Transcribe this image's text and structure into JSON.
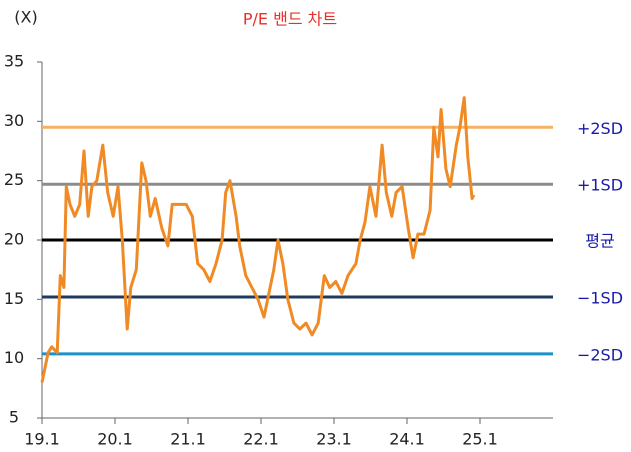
{
  "chart_data": {
    "type": "line",
    "title": "P/E 밴드 차트",
    "y_unit_label": "(X)",
    "x": [
      0,
      1,
      1.6,
      2.5,
      3,
      3.6,
      4,
      4.6,
      5.4,
      6.2,
      6.9,
      7.6,
      8.2,
      9,
      10,
      10.8,
      11.7,
      12.5,
      13.2,
      14,
      14.6,
      15.5,
      16.4,
      17.1,
      17.8,
      18.6,
      19.7,
      20.7,
      21.4,
      22.4,
      23.7,
      24.7,
      25.6,
      26.6,
      27.6,
      28.6,
      29.6,
      30.2,
      30.9,
      31.9,
      32.5,
      33.5,
      34.5,
      35.5,
      36.5,
      37.5,
      38.1,
      38.8,
      39.6,
      40.4,
      41.4,
      42.4,
      43.4,
      44.4,
      45.4,
      46.4,
      47.3,
      48.3,
      49.3,
      50.3,
      51.6,
      52.3,
      53.1,
      53.9,
      54.9,
      55.9,
      56.6,
      57.5,
      58.2,
      59.2,
      60.2,
      61,
      61.8,
      62.8,
      63.8,
      64.4,
      65.1,
      65.6,
      66.4,
      67.1,
      68.1,
      68.7,
      69.4,
      70,
      70.7,
      71
    ],
    "series": [
      {
        "name": "P/E",
        "color": "#f08a24",
        "values": [
          8,
          10.5,
          11,
          10.5,
          17,
          16,
          24.5,
          23,
          22,
          23,
          27.5,
          22,
          24.5,
          25,
          28,
          24,
          22,
          24.5,
          20,
          12.5,
          16,
          17.5,
          26.5,
          25,
          22,
          23.5,
          21,
          19.5,
          23,
          23,
          23,
          22,
          18,
          17.5,
          16.5,
          18,
          20,
          24,
          25,
          22,
          19.5,
          17,
          16,
          15,
          13.5,
          16,
          17.5,
          20,
          18,
          15,
          13,
          12.5,
          13,
          12,
          13,
          17,
          16,
          16.5,
          15.5,
          17,
          18,
          20,
          21.5,
          24.5,
          22,
          28,
          24,
          22,
          24,
          24.5,
          21,
          18.5,
          20.5,
          20.5,
          22.5,
          29.5,
          27,
          31,
          26,
          24.5,
          28,
          29.5,
          32,
          27,
          23.5,
          23.8
        ]
      }
    ],
    "bands": [
      {
        "name": "+2SD",
        "color": "#f4b266",
        "value": 29.5
      },
      {
        "name": "+1SD",
        "color": "#8c8c8c",
        "value": 24.7
      },
      {
        "name": "평균",
        "color": "#000000",
        "value": 20.0
      },
      {
        "name": "−1SD",
        "color": "#1f3a5f",
        "value": 15.2
      },
      {
        "name": "−2SD",
        "color": "#1e90c8",
        "value": 10.4
      }
    ],
    "band_label_color": "#1a1aa8",
    "xlim": [
      0,
      84
    ],
    "xticks": [
      {
        "value": 0,
        "label": "19.1"
      },
      {
        "value": 12,
        "label": "20.1"
      },
      {
        "value": 24,
        "label": "21.1"
      },
      {
        "value": 36,
        "label": "22.1"
      },
      {
        "value": 48,
        "label": "23.1"
      },
      {
        "value": 60,
        "label": "24.1"
      },
      {
        "value": 72,
        "label": "25.1"
      }
    ],
    "ylim": [
      5,
      35
    ],
    "yticks": [
      5,
      10,
      15,
      20,
      25,
      30,
      35
    ]
  }
}
